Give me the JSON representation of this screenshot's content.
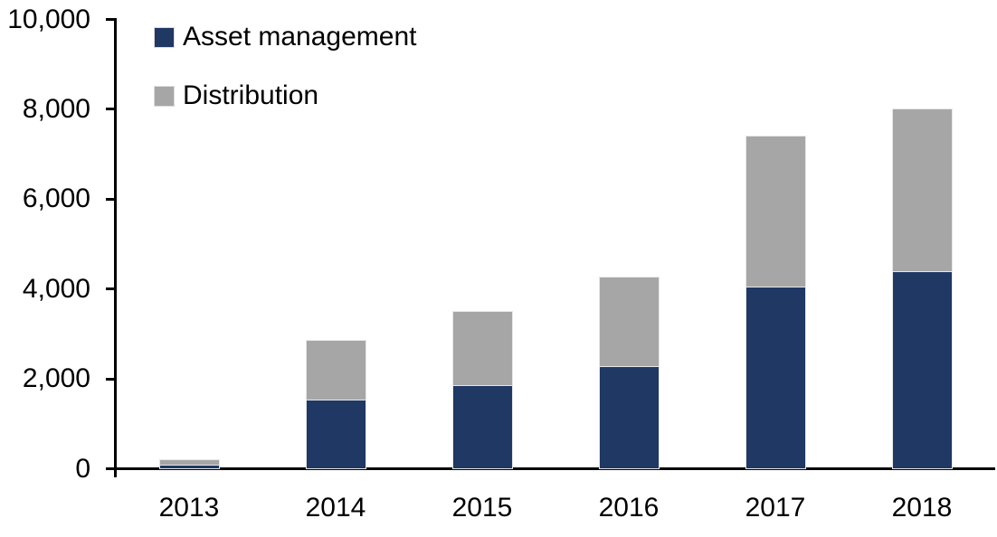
{
  "chart_data": {
    "type": "bar",
    "stacked": true,
    "title": "",
    "xlabel": "",
    "ylabel": "",
    "categories": [
      "2013",
      "2014",
      "2015",
      "2016",
      "2017",
      "2018"
    ],
    "series": [
      {
        "name": "Asset management",
        "color": "#1f3864",
        "values": [
          100,
          1530,
          1860,
          2280,
          4050,
          4400
        ]
      },
      {
        "name": "Distribution",
        "color": "#a6a6a6",
        "values": [
          100,
          1320,
          1640,
          1970,
          3350,
          3600
        ]
      }
    ],
    "totals": [
      200,
      2850,
      3500,
      4250,
      7400,
      8000
    ],
    "ylim": [
      0,
      10000
    ],
    "yticks": [
      0,
      2000,
      4000,
      6000,
      8000,
      10000
    ],
    "ytick_labels": [
      "0",
      "2,000",
      "4,000",
      "6,000",
      "8,000",
      "10,000"
    ],
    "grid": false,
    "legend_position": "top-left-inside",
    "axis_color": "#000000",
    "background_color": "#ffffff"
  }
}
